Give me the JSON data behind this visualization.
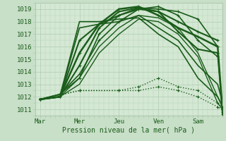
{
  "xlabel": "Pression niveau de la mer( hPa )",
  "ylim": [
    1010.5,
    1019.5
  ],
  "xlim": [
    0,
    114
  ],
  "yticks": [
    1011,
    1012,
    1013,
    1014,
    1015,
    1016,
    1017,
    1018,
    1019
  ],
  "xtick_positions": [
    3,
    27,
    51,
    75,
    99
  ],
  "xtick_labels": [
    "Mar",
    "Mer",
    "Jeu",
    "Ven",
    "Sam"
  ],
  "bg_color": "#c8dfc8",
  "plot_bg_color": "#d4e8d4",
  "grid_color": "#b0ccb0",
  "line_color": "#1a5c1a",
  "series": [
    {
      "x": [
        3,
        15,
        27,
        39,
        51,
        63,
        75,
        87,
        99,
        111
      ],
      "y": [
        1011.8,
        1012.2,
        1013.5,
        1017.0,
        1018.5,
        1019.1,
        1019.0,
        1018.8,
        1018.2,
        1016.0
      ],
      "style": "marker_line",
      "lw": 1.2
    },
    {
      "x": [
        3,
        15,
        27,
        39,
        51,
        63,
        75,
        87,
        99,
        111
      ],
      "y": [
        1011.8,
        1012.2,
        1013.8,
        1016.5,
        1018.0,
        1019.0,
        1019.2,
        1018.5,
        1016.5,
        1015.2
      ],
      "style": "marker_line",
      "lw": 1.2
    },
    {
      "x": [
        3,
        15,
        27,
        39,
        51,
        63,
        75,
        87,
        99,
        111
      ],
      "y": [
        1011.8,
        1012.0,
        1014.5,
        1017.5,
        1018.8,
        1019.1,
        1018.8,
        1018.0,
        1017.2,
        1016.5
      ],
      "style": "marker_line",
      "lw": 1.5
    },
    {
      "x": [
        3,
        15,
        27,
        39,
        51,
        63,
        75,
        87,
        99,
        111,
        114
      ],
      "y": [
        1011.8,
        1012.0,
        1015.5,
        1017.8,
        1019.0,
        1019.2,
        1018.5,
        1017.5,
        1016.8,
        1016.0,
        1010.8
      ],
      "style": "marker_line",
      "lw": 1.8
    },
    {
      "x": [
        3,
        15,
        27,
        39,
        51,
        63,
        75,
        87,
        99,
        111,
        114
      ],
      "y": [
        1011.8,
        1012.0,
        1016.5,
        1017.8,
        1018.5,
        1019.0,
        1018.8,
        1017.2,
        1015.8,
        1015.5,
        1010.6
      ],
      "style": "marker_line",
      "lw": 1.5
    },
    {
      "x": [
        3,
        15,
        27,
        39,
        51,
        63,
        75,
        87,
        99,
        111,
        114
      ],
      "y": [
        1011.8,
        1012.0,
        1017.5,
        1017.8,
        1018.0,
        1018.5,
        1017.5,
        1016.5,
        1014.5,
        1013.0,
        1011.5
      ],
      "style": "solid",
      "lw": 1.2
    },
    {
      "x": [
        3,
        15,
        27,
        39,
        51,
        63,
        75,
        87,
        99,
        111,
        114
      ],
      "y": [
        1011.8,
        1012.0,
        1018.0,
        1018.0,
        1018.2,
        1018.3,
        1017.0,
        1016.0,
        1013.5,
        1012.0,
        1011.2
      ],
      "style": "solid",
      "lw": 1.2
    },
    {
      "x": [
        3,
        27,
        51,
        63,
        75,
        87,
        99,
        111,
        114
      ],
      "y": [
        1011.8,
        1012.5,
        1012.5,
        1012.8,
        1013.5,
        1012.8,
        1012.5,
        1011.5,
        1011.2
      ],
      "style": "dotted",
      "lw": 1.0
    },
    {
      "x": [
        3,
        27,
        51,
        63,
        75,
        87,
        99,
        111,
        114
      ],
      "y": [
        1011.8,
        1012.5,
        1012.5,
        1012.5,
        1012.8,
        1012.5,
        1012.0,
        1011.2,
        1011.0
      ],
      "style": "dotted",
      "lw": 1.0
    },
    {
      "x": [
        3,
        15,
        27,
        39,
        51,
        63,
        75,
        87,
        99,
        111,
        114
      ],
      "y": [
        1011.8,
        1012.0,
        1013.0,
        1015.5,
        1017.0,
        1018.2,
        1018.0,
        1017.0,
        1015.2,
        1011.5,
        1011.0
      ],
      "style": "solid",
      "lw": 1.0
    },
    {
      "x": [
        3,
        15,
        27,
        39,
        51,
        63,
        75,
        87,
        99,
        111,
        114
      ],
      "y": [
        1011.8,
        1012.0,
        1013.5,
        1016.0,
        1017.5,
        1018.5,
        1018.3,
        1017.5,
        1015.5,
        1012.0,
        1011.2
      ],
      "style": "solid",
      "lw": 1.0
    }
  ]
}
